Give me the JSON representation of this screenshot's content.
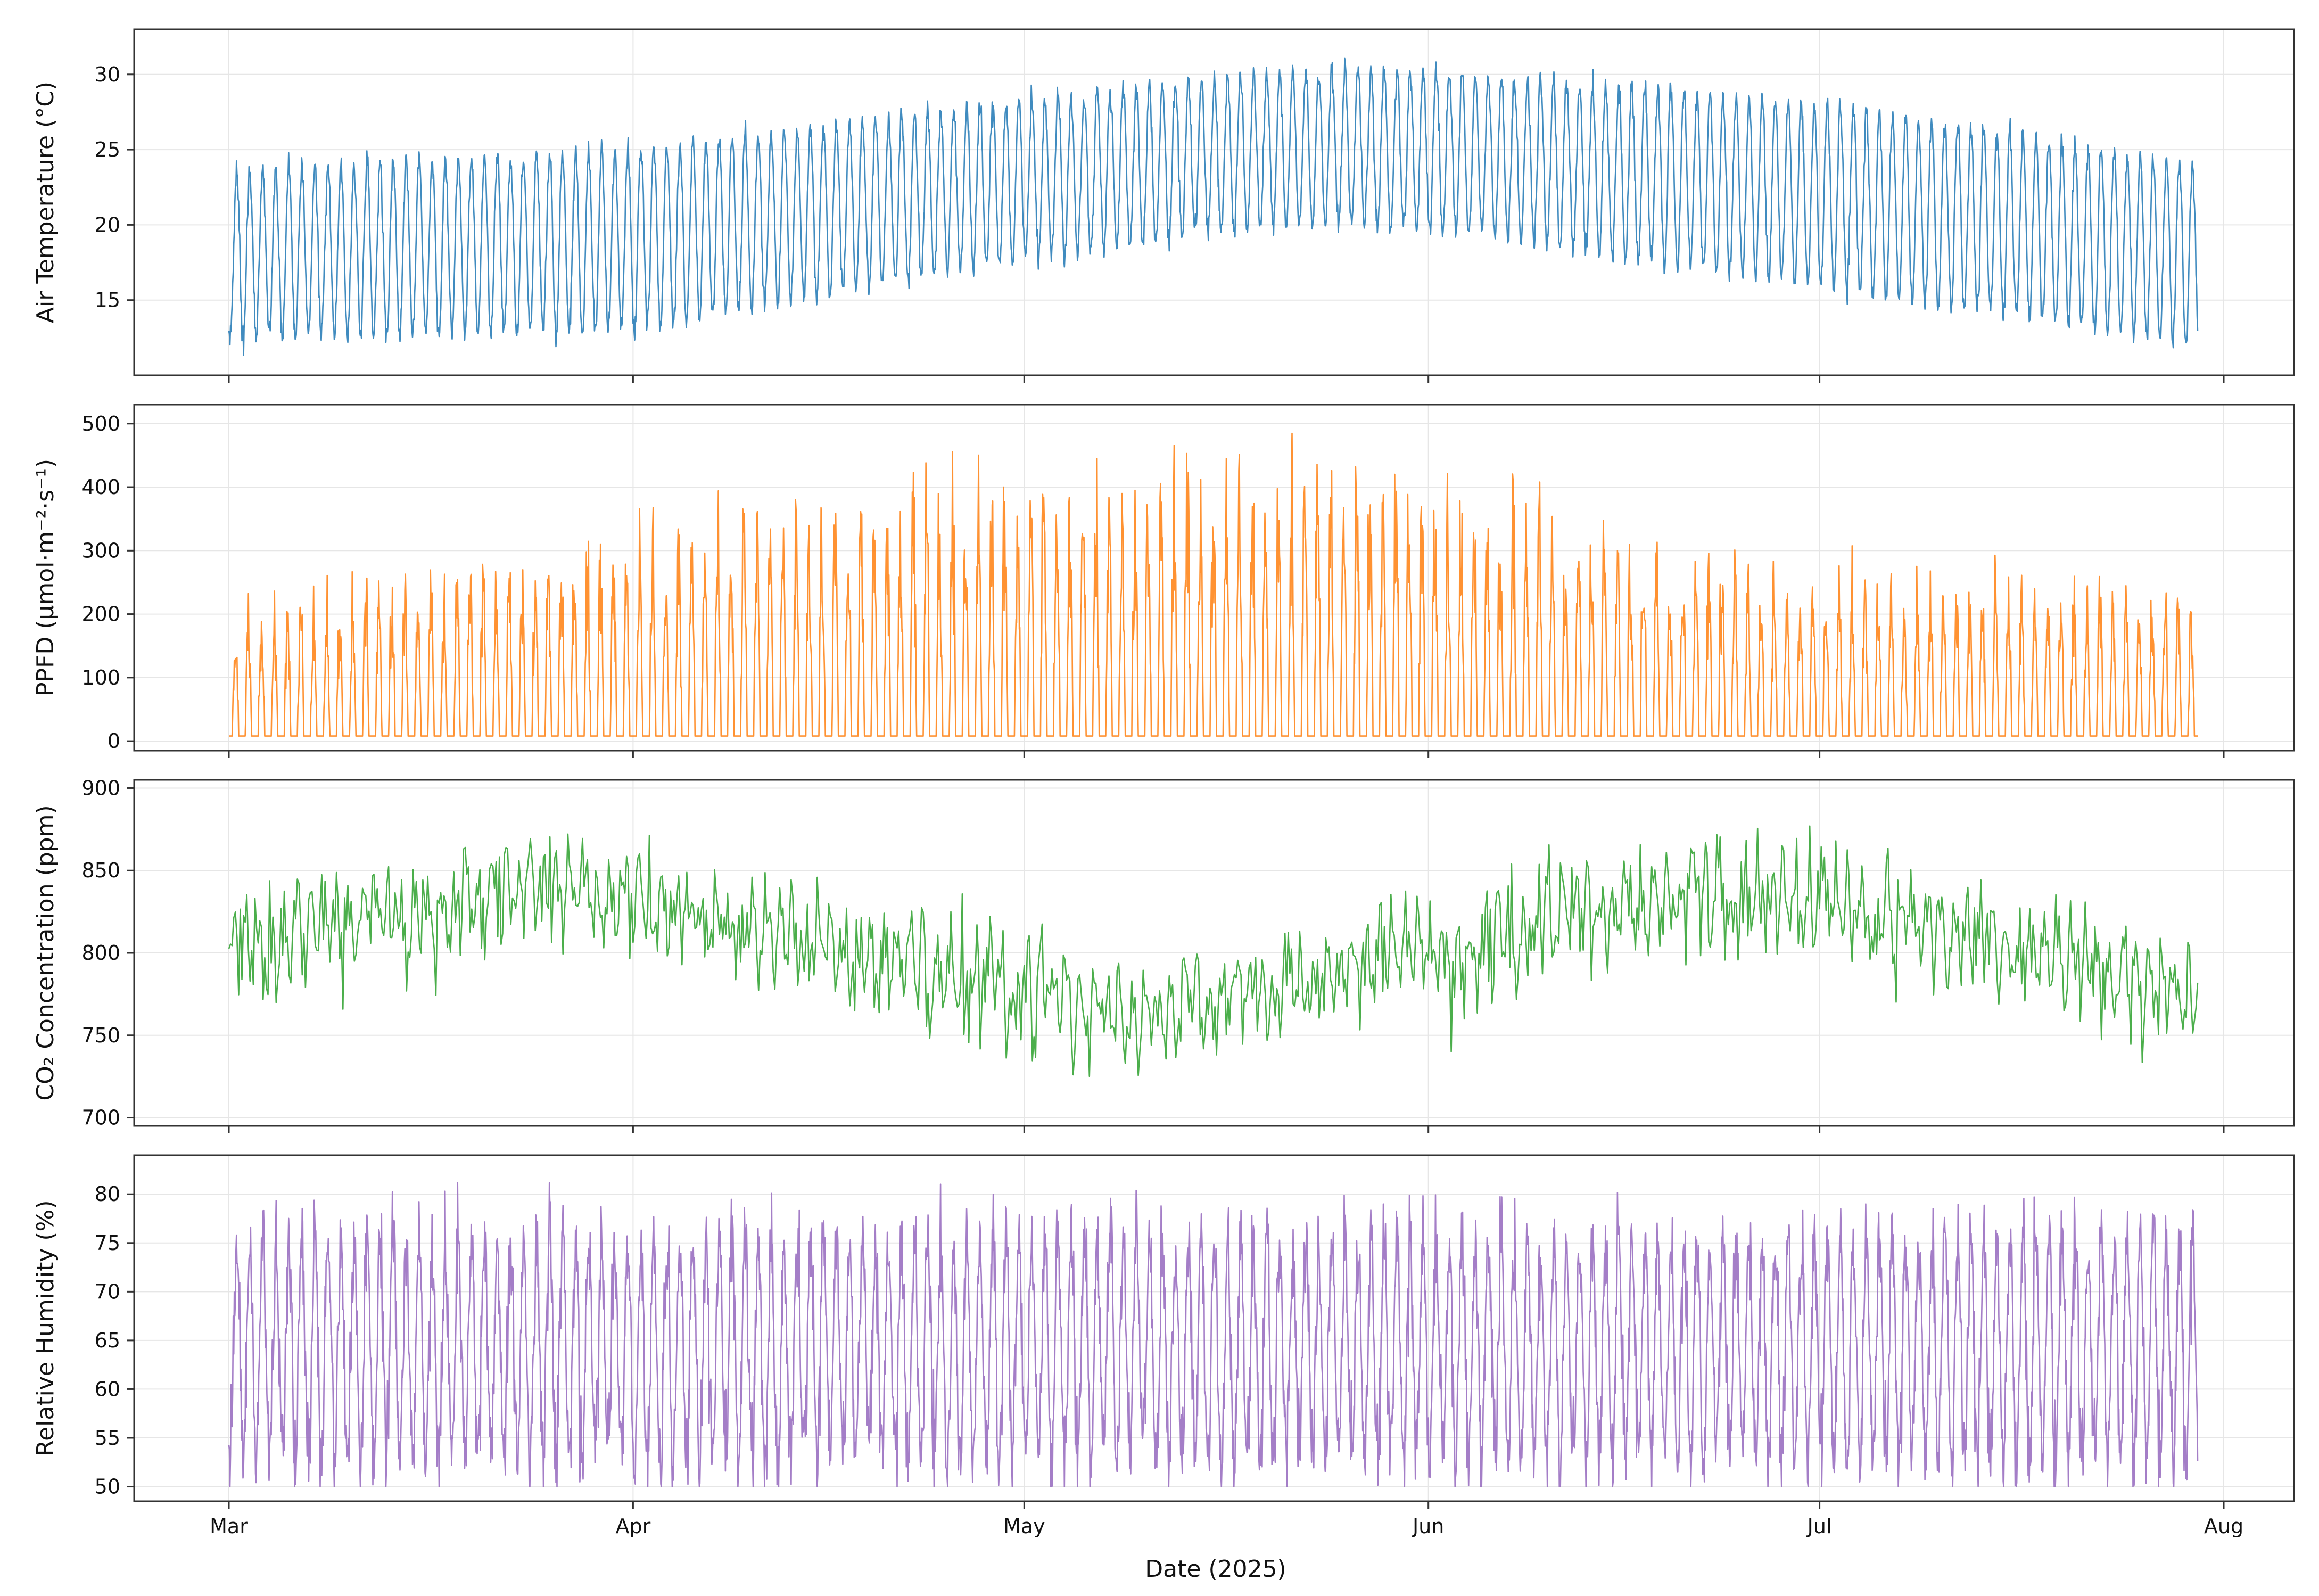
{
  "chart_data": {
    "type": "line",
    "shared_x": true,
    "xlabel": "Date (2025)",
    "x_range": [
      "2025-03-01",
      "2025-07-30"
    ],
    "x_ticks": [
      {
        "date": "2025-03-01",
        "label": "Mar"
      },
      {
        "date": "2025-04-01",
        "label": "Apr"
      },
      {
        "date": "2025-05-01",
        "label": "May"
      },
      {
        "date": "2025-06-01",
        "label": "Jun"
      },
      {
        "date": "2025-07-01",
        "label": "Jul"
      },
      {
        "date": "2025-08-01",
        "label": "Aug"
      }
    ],
    "grid": true,
    "panels": [
      {
        "ylabel": "Air Temperature (°C)",
        "color": "#1f77b4",
        "ylim": [
          10,
          33
        ],
        "yticks": [
          15,
          20,
          25,
          30
        ],
        "samples_per_day": 24,
        "seasonal_mean": [
          {
            "date": "2025-03-01",
            "value": 18
          },
          {
            "date": "2025-04-01",
            "value": 19
          },
          {
            "date": "2025-05-01",
            "value": 23
          },
          {
            "date": "2025-05-20",
            "value": 25
          },
          {
            "date": "2025-06-01",
            "value": 25
          },
          {
            "date": "2025-07-01",
            "value": 22
          },
          {
            "date": "2025-07-30",
            "value": 18
          }
        ],
        "daily_amplitude": [
          {
            "date": "2025-03-01",
            "value": 11
          },
          {
            "date": "2025-04-01",
            "value": 12
          },
          {
            "date": "2025-05-01",
            "value": 10.5
          },
          {
            "date": "2025-05-20",
            "value": 10
          },
          {
            "date": "2025-06-01",
            "value": 10.5
          },
          {
            "date": "2025-07-01",
            "value": 12
          },
          {
            "date": "2025-07-30",
            "value": 12
          }
        ],
        "noise": 0.4,
        "mode": "diurnal"
      },
      {
        "ylabel": "PPFD (μmol·m⁻²·s⁻¹)",
        "color": "#ff7f0e",
        "ylim": [
          -15,
          530
        ],
        "yticks": [
          0,
          100,
          200,
          300,
          400,
          500
        ],
        "samples_per_day": 24,
        "baseline": 8,
        "daily_peak": [
          {
            "date": "2025-03-01",
            "value": 160
          },
          {
            "date": "2025-04-01",
            "value": 250
          },
          {
            "date": "2025-05-01",
            "value": 330
          },
          {
            "date": "2025-05-20",
            "value": 350
          },
          {
            "date": "2025-06-01",
            "value": 320
          },
          {
            "date": "2025-07-01",
            "value": 200
          },
          {
            "date": "2025-07-30",
            "value": 180
          }
        ],
        "peak_max": [
          {
            "date": "2025-03-01",
            "value": 285
          },
          {
            "date": "2025-04-01",
            "value": 345
          },
          {
            "date": "2025-05-01",
            "value": 505
          },
          {
            "date": "2025-05-20",
            "value": 480
          },
          {
            "date": "2025-06-01",
            "value": 440
          },
          {
            "date": "2025-07-01",
            "value": 305
          },
          {
            "date": "2025-07-30",
            "value": 335
          }
        ],
        "mode": "daylight"
      },
      {
        "ylabel": "CO₂ Concentration (ppm)",
        "color": "#2ca02c",
        "ylim": [
          695,
          905
        ],
        "yticks": [
          700,
          750,
          800,
          850,
          900
        ],
        "samples_per_day": 8,
        "seasonal_mean": [
          {
            "date": "2025-03-01",
            "value": 805
          },
          {
            "date": "2025-03-25",
            "value": 840
          },
          {
            "date": "2025-04-10",
            "value": 815
          },
          {
            "date": "2025-05-10",
            "value": 760
          },
          {
            "date": "2025-06-01",
            "value": 800
          },
          {
            "date": "2025-06-20",
            "value": 835
          },
          {
            "date": "2025-07-01",
            "value": 830
          },
          {
            "date": "2025-07-30",
            "value": 775
          }
        ],
        "daily_amplitude": [
          {
            "date": "2025-03-01",
            "value": 30
          },
          {
            "date": "2025-07-30",
            "value": 30
          }
        ],
        "noise": 15,
        "extremes": {
          "max": 898,
          "min": 703
        },
        "mode": "noisy"
      },
      {
        "ylabel": "Relative Humidity (%)",
        "color": "#9467bd",
        "ylim": [
          48.5,
          84
        ],
        "yticks": [
          50,
          55,
          60,
          65,
          70,
          75,
          80
        ],
        "samples_per_day": 24,
        "seasonal_mean": [
          {
            "date": "2025-03-01",
            "value": 64
          },
          {
            "date": "2025-07-30",
            "value": 64
          }
        ],
        "daily_amplitude": [
          {
            "date": "2025-03-01",
            "value": 22
          },
          {
            "date": "2025-07-30",
            "value": 22
          }
        ],
        "noise": 2.5,
        "extremes": {
          "max": 83,
          "min": 50
        },
        "mode": "diurnal"
      }
    ]
  }
}
